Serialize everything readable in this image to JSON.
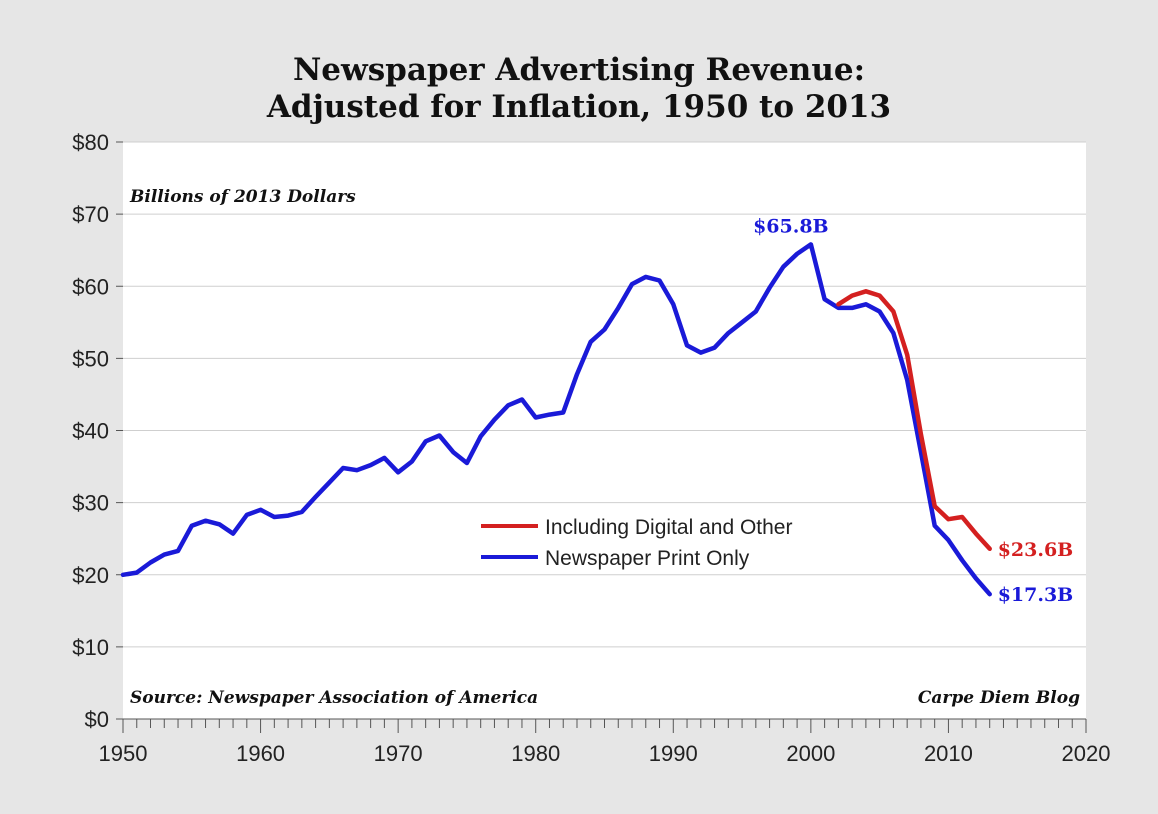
{
  "chart_data": {
    "type": "line",
    "title_line1": "Newspaper Advertising Revenue:",
    "title_line2": "Adjusted for Inflation, 1950 to 2013",
    "units_note": "Billions of 2013 Dollars",
    "source": "Source: Newspaper Association of America",
    "credit": "Carpe Diem Blog",
    "xlim": [
      1950,
      2020
    ],
    "ylim": [
      0,
      80
    ],
    "x_ticks": [
      {
        "value": 1950,
        "label": "1950"
      },
      {
        "value": 1960,
        "label": "1960"
      },
      {
        "value": 1970,
        "label": "1970"
      },
      {
        "value": 1980,
        "label": "1980"
      },
      {
        "value": 1990,
        "label": "1990"
      },
      {
        "value": 2000,
        "label": "2000"
      },
      {
        "value": 2010,
        "label": "2010"
      },
      {
        "value": 2020,
        "label": "2020"
      }
    ],
    "y_ticks": [
      {
        "value": 0,
        "label": "$0"
      },
      {
        "value": 10,
        "label": "$10"
      },
      {
        "value": 20,
        "label": "$20"
      },
      {
        "value": 30,
        "label": "$30"
      },
      {
        "value": 40,
        "label": "$40"
      },
      {
        "value": 50,
        "label": "$50"
      },
      {
        "value": 60,
        "label": "$60"
      },
      {
        "value": 70,
        "label": "$70"
      },
      {
        "value": 80,
        "label": "$80"
      }
    ],
    "grid": true,
    "legend_position": "center-right",
    "series": [
      {
        "name": "Including Digital and Other",
        "color": "#d42020",
        "x": [
          2002,
          2003,
          2004,
          2005,
          2006,
          2007,
          2008,
          2009,
          2010,
          2011,
          2012,
          2013
        ],
        "y": [
          57.5,
          58.7,
          59.3,
          58.7,
          56.5,
          50.5,
          39.5,
          29.5,
          27.7,
          28.0,
          25.7,
          23.6
        ]
      },
      {
        "name": "Newspaper Print Only",
        "color": "#1a1ad8",
        "x": [
          1950,
          1951,
          1952,
          1953,
          1954,
          1955,
          1956,
          1957,
          1958,
          1959,
          1960,
          1961,
          1962,
          1963,
          1964,
          1965,
          1966,
          1967,
          1968,
          1969,
          1970,
          1971,
          1972,
          1973,
          1974,
          1975,
          1976,
          1977,
          1978,
          1979,
          1980,
          1981,
          1982,
          1983,
          1984,
          1985,
          1986,
          1987,
          1988,
          1989,
          1990,
          1991,
          1992,
          1993,
          1994,
          1995,
          1996,
          1997,
          1998,
          1999,
          2000,
          2001,
          2002,
          2003,
          2004,
          2005,
          2006,
          2007,
          2008,
          2009,
          2010,
          2011,
          2012,
          2013
        ],
        "y": [
          20.0,
          20.3,
          21.7,
          22.8,
          23.3,
          26.8,
          27.5,
          27.0,
          25.7,
          28.3,
          29.0,
          28.0,
          28.2,
          28.7,
          30.8,
          32.8,
          34.8,
          34.5,
          35.2,
          36.2,
          34.2,
          35.7,
          38.5,
          39.3,
          37.0,
          35.5,
          39.2,
          41.5,
          43.5,
          44.3,
          41.8,
          42.2,
          42.5,
          47.8,
          52.3,
          54.0,
          57.0,
          60.3,
          61.3,
          60.8,
          57.5,
          51.8,
          50.8,
          51.5,
          53.5,
          55.0,
          56.5,
          59.8,
          62.7,
          64.5,
          65.8,
          58.2,
          57.0,
          57.0,
          57.5,
          56.5,
          53.5,
          47.0,
          37.0,
          26.8,
          24.8,
          22.0,
          19.5,
          17.3
        ]
      }
    ],
    "annotations": [
      {
        "text": "$65.8B",
        "x": 2000,
        "y": 65.8,
        "color": "#1a1ad8"
      },
      {
        "text": "$23.6B",
        "x": 2013,
        "y": 23.6,
        "color": "#d42020"
      },
      {
        "text": "$17.3B",
        "x": 2013,
        "y": 17.3,
        "color": "#1a1ad8"
      }
    ]
  }
}
